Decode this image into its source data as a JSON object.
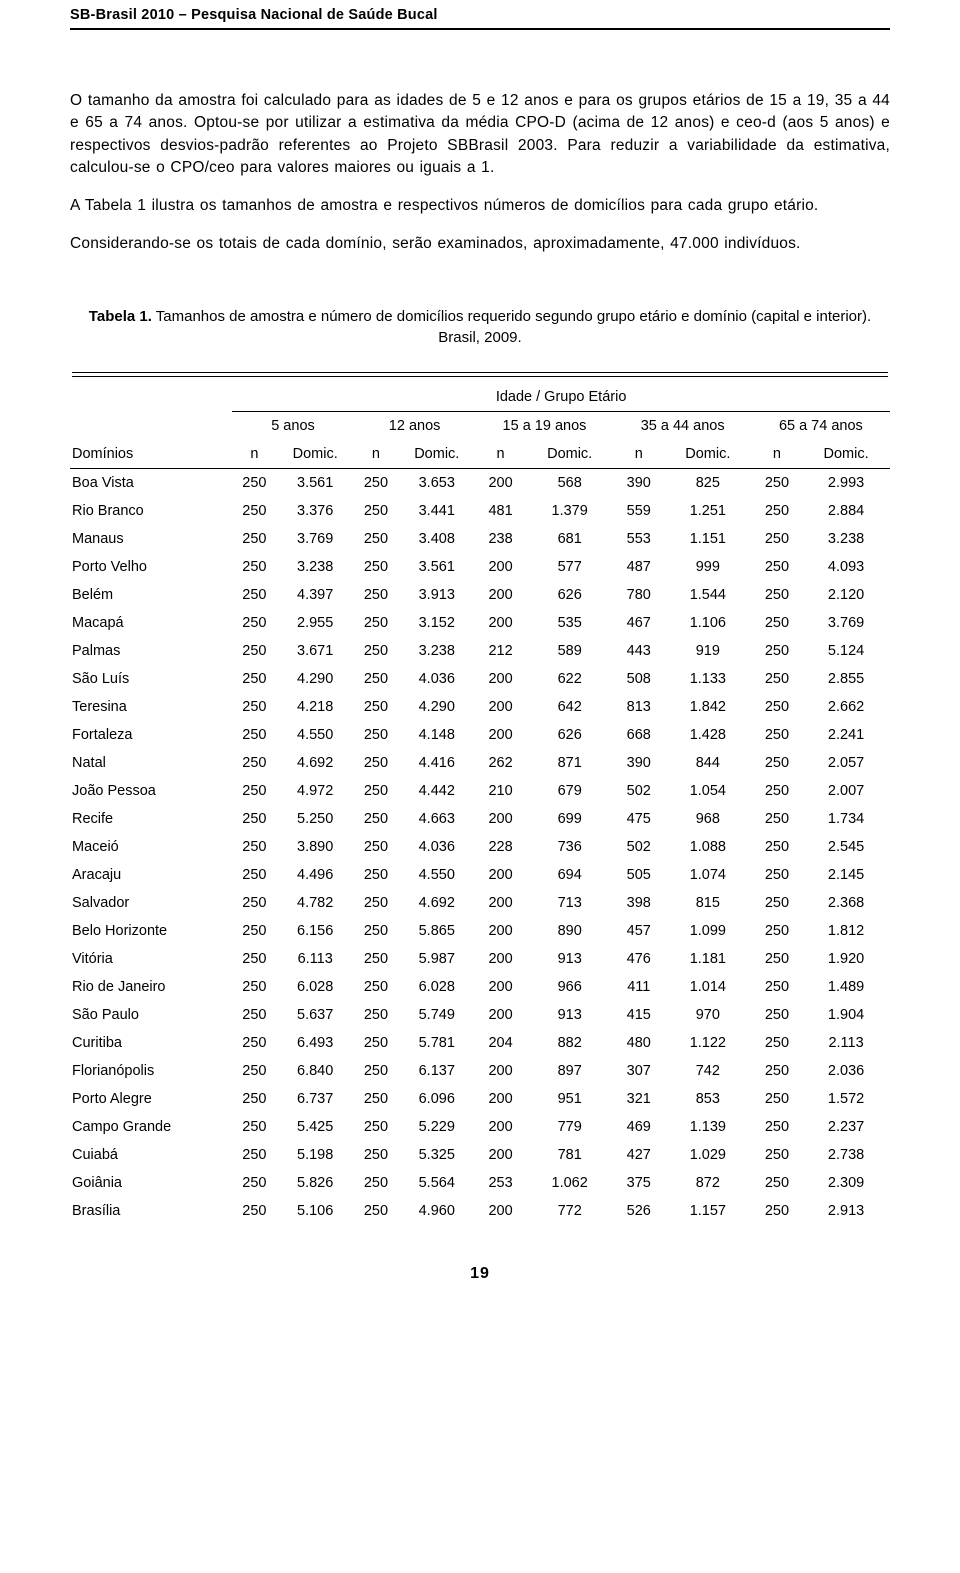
{
  "header": "SB-Brasil 2010 – Pesquisa Nacional de Saúde Bucal",
  "paragraphs": {
    "p1": "O tamanho da amostra foi calculado para as idades de 5 e 12 anos e para os grupos etários de 15 a 19, 35 a 44 e 65 a 74 anos. Optou-se por utilizar a estimativa da média CPO-D (acima de 12 anos) e ceo-d (aos 5 anos) e respectivos desvios-padrão referentes ao Projeto SBBrasil 2003. Para reduzir a variabilidade da estimativa, calculou-se o CPO/ceo para valores maiores ou iguais a 1.",
    "p2": "A Tabela 1 ilustra os tamanhos de amostra e respectivos números de domicílios para cada grupo etário.",
    "p3": "Considerando-se os totais de cada domínio, serão examinados, aproximadamente, 47.000 indivíduos."
  },
  "table": {
    "caption_bold": "Tabela 1.",
    "caption_rest": " Tamanhos de amostra e número de domicílios requerido segundo grupo etário e domínio (capital e interior). Brasil, 2009.",
    "super_header": "Idade / Grupo Etário",
    "age_groups": [
      "5 anos",
      "12 anos",
      "15 a 19 anos",
      "35 a 44 anos",
      "65 a 74 anos"
    ],
    "col_label_left": "Domínios",
    "sub_headers": [
      "n",
      "Domic."
    ],
    "rows": [
      {
        "d": "Boa Vista",
        "v": [
          "250",
          "3.561",
          "250",
          "3.653",
          "200",
          "568",
          "390",
          "825",
          "250",
          "2.993"
        ]
      },
      {
        "d": "Rio Branco",
        "v": [
          "250",
          "3.376",
          "250",
          "3.441",
          "481",
          "1.379",
          "559",
          "1.251",
          "250",
          "2.884"
        ]
      },
      {
        "d": "Manaus",
        "v": [
          "250",
          "3.769",
          "250",
          "3.408",
          "238",
          "681",
          "553",
          "1.151",
          "250",
          "3.238"
        ]
      },
      {
        "d": "Porto Velho",
        "v": [
          "250",
          "3.238",
          "250",
          "3.561",
          "200",
          "577",
          "487",
          "999",
          "250",
          "4.093"
        ]
      },
      {
        "d": "Belém",
        "v": [
          "250",
          "4.397",
          "250",
          "3.913",
          "200",
          "626",
          "780",
          "1.544",
          "250",
          "2.120"
        ]
      },
      {
        "d": "Macapá",
        "v": [
          "250",
          "2.955",
          "250",
          "3.152",
          "200",
          "535",
          "467",
          "1.106",
          "250",
          "3.769"
        ]
      },
      {
        "d": "Palmas",
        "v": [
          "250",
          "3.671",
          "250",
          "3.238",
          "212",
          "589",
          "443",
          "919",
          "250",
          "5.124"
        ]
      },
      {
        "d": "São Luís",
        "v": [
          "250",
          "4.290",
          "250",
          "4.036",
          "200",
          "622",
          "508",
          "1.133",
          "250",
          "2.855"
        ]
      },
      {
        "d": "Teresina",
        "v": [
          "250",
          "4.218",
          "250",
          "4.290",
          "200",
          "642",
          "813",
          "1.842",
          "250",
          "2.662"
        ]
      },
      {
        "d": "Fortaleza",
        "v": [
          "250",
          "4.550",
          "250",
          "4.148",
          "200",
          "626",
          "668",
          "1.428",
          "250",
          "2.241"
        ]
      },
      {
        "d": "Natal",
        "v": [
          "250",
          "4.692",
          "250",
          "4.416",
          "262",
          "871",
          "390",
          "844",
          "250",
          "2.057"
        ]
      },
      {
        "d": "João Pessoa",
        "v": [
          "250",
          "4.972",
          "250",
          "4.442",
          "210",
          "679",
          "502",
          "1.054",
          "250",
          "2.007"
        ]
      },
      {
        "d": "Recife",
        "v": [
          "250",
          "5.250",
          "250",
          "4.663",
          "200",
          "699",
          "475",
          "968",
          "250",
          "1.734"
        ]
      },
      {
        "d": "Maceió",
        "v": [
          "250",
          "3.890",
          "250",
          "4.036",
          "228",
          "736",
          "502",
          "1.088",
          "250",
          "2.545"
        ]
      },
      {
        "d": "Aracaju",
        "v": [
          "250",
          "4.496",
          "250",
          "4.550",
          "200",
          "694",
          "505",
          "1.074",
          "250",
          "2.145"
        ]
      },
      {
        "d": "Salvador",
        "v": [
          "250",
          "4.782",
          "250",
          "4.692",
          "200",
          "713",
          "398",
          "815",
          "250",
          "2.368"
        ]
      },
      {
        "d": "Belo Horizonte",
        "v": [
          "250",
          "6.156",
          "250",
          "5.865",
          "200",
          "890",
          "457",
          "1.099",
          "250",
          "1.812"
        ]
      },
      {
        "d": "Vitória",
        "v": [
          "250",
          "6.113",
          "250",
          "5.987",
          "200",
          "913",
          "476",
          "1.181",
          "250",
          "1.920"
        ]
      },
      {
        "d": "Rio de Janeiro",
        "v": [
          "250",
          "6.028",
          "250",
          "6.028",
          "200",
          "966",
          "411",
          "1.014",
          "250",
          "1.489"
        ]
      },
      {
        "d": "São Paulo",
        "v": [
          "250",
          "5.637",
          "250",
          "5.749",
          "200",
          "913",
          "415",
          "970",
          "250",
          "1.904"
        ]
      },
      {
        "d": "Curitiba",
        "v": [
          "250",
          "6.493",
          "250",
          "5.781",
          "204",
          "882",
          "480",
          "1.122",
          "250",
          "2.113"
        ]
      },
      {
        "d": "Florianópolis",
        "v": [
          "250",
          "6.840",
          "250",
          "6.137",
          "200",
          "897",
          "307",
          "742",
          "250",
          "2.036"
        ]
      },
      {
        "d": "Porto Alegre",
        "v": [
          "250",
          "6.737",
          "250",
          "6.096",
          "200",
          "951",
          "321",
          "853",
          "250",
          "1.572"
        ]
      },
      {
        "d": "Campo Grande",
        "v": [
          "250",
          "5.425",
          "250",
          "5.229",
          "200",
          "779",
          "469",
          "1.139",
          "250",
          "2.237"
        ]
      },
      {
        "d": "Cuiabá",
        "v": [
          "250",
          "5.198",
          "250",
          "5.325",
          "200",
          "781",
          "427",
          "1.029",
          "250",
          "2.738"
        ]
      },
      {
        "d": "Goiânia",
        "v": [
          "250",
          "5.826",
          "250",
          "5.564",
          "253",
          "1.062",
          "375",
          "872",
          "250",
          "2.309"
        ]
      },
      {
        "d": "Brasília",
        "v": [
          "250",
          "5.106",
          "250",
          "4.960",
          "200",
          "772",
          "526",
          "1.157",
          "250",
          "2.913"
        ]
      }
    ]
  },
  "page_number": "19"
}
